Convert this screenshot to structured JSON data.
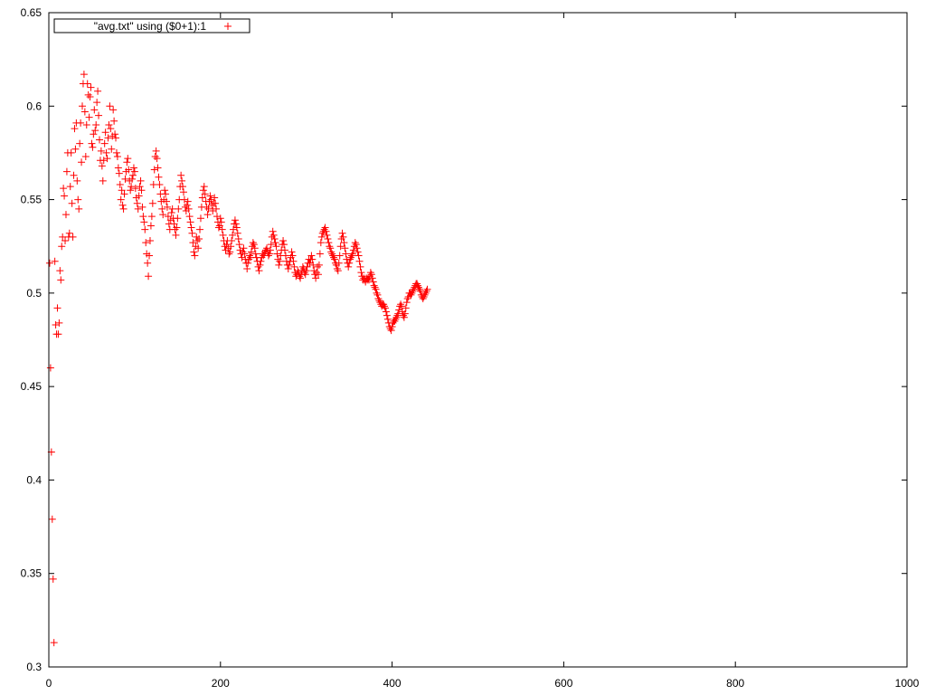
{
  "colors": {
    "series": "#ff0000",
    "axis": "#000000",
    "background": "#ffffff"
  },
  "chart_data": {
    "type": "scatter",
    "marker": "plus",
    "grid": false,
    "legend_position": "top-left",
    "xlim": [
      0,
      1000
    ],
    "ylim": [
      0.3,
      0.65
    ],
    "x_ticks": [
      0,
      200,
      400,
      600,
      800,
      1000
    ],
    "y_ticks": [
      0.3,
      0.35,
      0.4,
      0.45,
      0.5,
      0.55,
      0.6,
      0.65
    ],
    "x_tick_labels": [
      "0",
      "200",
      "400",
      "600",
      "800",
      "1000"
    ],
    "y_tick_labels": [
      "0.3",
      "0.35",
      "0.4",
      "0.45",
      "0.5",
      "0.55",
      "0.6",
      "0.65"
    ],
    "series": [
      {
        "name": "\"avg.txt\" using ($0+1):1",
        "color": "#ff0000",
        "x_start": 1,
        "x_step": 1,
        "y": [
          0.516,
          0.46,
          0.415,
          0.379,
          0.347,
          0.313,
          0.517,
          0.483,
          0.478,
          0.492,
          0.478,
          0.484,
          0.512,
          0.507,
          0.525,
          0.53,
          0.556,
          0.552,
          0.528,
          0.542,
          0.565,
          0.575,
          0.53,
          0.532,
          0.557,
          0.575,
          0.548,
          0.53,
          0.563,
          0.588,
          0.577,
          0.591,
          0.56,
          0.55,
          0.545,
          0.58,
          0.591,
          0.57,
          0.6,
          0.612,
          0.617,
          0.597,
          0.573,
          0.59,
          0.612,
          0.606,
          0.594,
          0.605,
          0.61,
          0.58,
          0.578,
          0.585,
          0.598,
          0.587,
          0.59,
          0.602,
          0.608,
          0.595,
          0.582,
          0.571,
          0.576,
          0.568,
          0.56,
          0.571,
          0.58,
          0.586,
          0.575,
          0.572,
          0.583,
          0.59,
          0.6,
          0.588,
          0.577,
          0.584,
          0.598,
          0.592,
          0.585,
          0.583,
          0.575,
          0.573,
          0.567,
          0.564,
          0.558,
          0.55,
          0.555,
          0.547,
          0.545,
          0.553,
          0.561,
          0.565,
          0.57,
          0.572,
          0.566,
          0.56,
          0.555,
          0.557,
          0.561,
          0.563,
          0.567,
          0.565,
          0.556,
          0.551,
          0.548,
          0.545,
          0.552,
          0.557,
          0.56,
          0.555,
          0.546,
          0.541,
          0.538,
          0.534,
          0.527,
          0.521,
          0.516,
          0.509,
          0.52,
          0.528,
          0.536,
          0.541,
          0.548,
          0.558,
          0.566,
          0.573,
          0.576,
          0.572,
          0.567,
          0.562,
          0.558,
          0.553,
          0.549,
          0.545,
          0.542,
          0.55,
          0.555,
          0.553,
          0.549,
          0.546,
          0.541,
          0.537,
          0.534,
          0.539,
          0.543,
          0.545,
          0.54,
          0.537,
          0.534,
          0.531,
          0.535,
          0.54,
          0.545,
          0.55,
          0.557,
          0.563,
          0.56,
          0.557,
          0.554,
          0.55,
          0.546,
          0.544,
          0.547,
          0.549,
          0.545,
          0.541,
          0.538,
          0.535,
          0.532,
          0.527,
          0.522,
          0.52,
          0.525,
          0.53,
          0.528,
          0.524,
          0.529,
          0.534,
          0.54,
          0.546,
          0.551,
          0.555,
          0.557,
          0.553,
          0.549,
          0.546,
          0.542,
          0.545,
          0.549,
          0.552,
          0.55,
          0.547,
          0.544,
          0.548,
          0.551,
          0.548,
          0.545,
          0.541,
          0.538,
          0.535,
          0.536,
          0.54,
          0.538,
          0.534,
          0.531,
          0.528,
          0.525,
          0.523,
          0.526,
          0.528,
          0.524,
          0.521,
          0.522,
          0.525,
          0.528,
          0.531,
          0.534,
          0.537,
          0.539,
          0.537,
          0.535,
          0.532,
          0.529,
          0.526,
          0.523,
          0.521,
          0.519,
          0.522,
          0.524,
          0.521,
          0.518,
          0.516,
          0.513,
          0.516,
          0.518,
          0.52,
          0.519,
          0.522,
          0.525,
          0.527,
          0.526,
          0.524,
          0.521,
          0.519,
          0.517,
          0.514,
          0.512,
          0.515,
          0.517,
          0.519,
          0.521,
          0.52,
          0.521,
          0.522,
          0.523,
          0.524,
          0.522,
          0.52,
          0.521,
          0.523,
          0.526,
          0.53,
          0.533,
          0.531,
          0.529,
          0.527,
          0.525,
          0.521,
          0.518,
          0.515,
          0.517,
          0.52,
          0.523,
          0.526,
          0.528,
          0.526,
          0.523,
          0.52,
          0.517,
          0.515,
          0.513,
          0.515,
          0.517,
          0.519,
          0.522,
          0.52,
          0.517,
          0.514,
          0.511,
          0.509,
          0.51,
          0.512,
          0.511,
          0.509,
          0.508,
          0.51,
          0.512,
          0.514,
          0.513,
          0.511,
          0.51,
          0.512,
          0.514,
          0.516,
          0.518,
          0.516,
          0.518,
          0.52,
          0.518,
          0.515,
          0.512,
          0.51,
          0.508,
          0.511,
          0.514,
          0.51,
          0.515,
          0.521,
          0.527,
          0.53,
          0.532,
          0.533,
          0.534,
          0.535,
          0.533,
          0.531,
          0.529,
          0.527,
          0.525,
          0.524,
          0.522,
          0.521,
          0.52,
          0.519,
          0.518,
          0.516,
          0.515,
          0.513,
          0.512,
          0.516,
          0.52,
          0.525,
          0.529,
          0.532,
          0.53,
          0.527,
          0.524,
          0.521,
          0.518,
          0.516,
          0.514,
          0.516,
          0.518,
          0.519,
          0.52,
          0.521,
          0.523,
          0.525,
          0.527,
          0.526,
          0.524,
          0.522,
          0.52,
          0.517,
          0.514,
          0.511,
          0.509,
          0.507,
          0.508,
          0.507,
          0.506,
          0.508,
          0.507,
          0.508,
          0.507,
          0.509,
          0.511,
          0.51,
          0.508,
          0.506,
          0.504,
          0.503,
          0.502,
          0.5,
          0.499,
          0.497,
          0.496,
          0.495,
          0.494,
          0.493,
          0.494,
          0.494,
          0.493,
          0.492,
          0.49,
          0.488,
          0.486,
          0.484,
          0.482,
          0.481,
          0.48,
          0.482,
          0.484,
          0.485,
          0.485,
          0.486,
          0.487,
          0.488,
          0.489,
          0.491,
          0.493,
          0.494,
          0.493,
          0.49,
          0.488,
          0.487,
          0.489,
          0.492,
          0.495,
          0.497,
          0.498,
          0.5,
          0.5,
          0.499,
          0.5,
          0.501,
          0.502,
          0.503,
          0.504,
          0.505,
          0.505,
          0.504,
          0.503,
          0.502,
          0.501,
          0.499,
          0.498,
          0.497,
          0.498,
          0.499,
          0.5,
          0.501,
          0.502
        ]
      }
    ]
  }
}
